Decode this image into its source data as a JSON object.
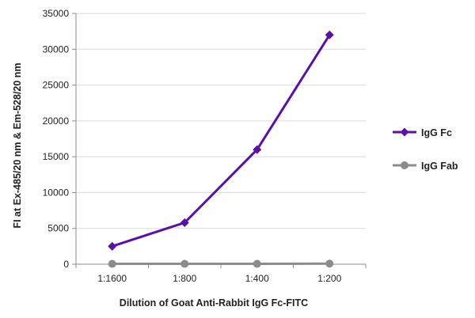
{
  "chart_data": {
    "type": "line",
    "categories": [
      "1:1600",
      "1:800",
      "1:400",
      "1:200"
    ],
    "series": [
      {
        "name": "IgG Fc",
        "values": [
          2500,
          5800,
          16000,
          32000
        ],
        "color": "#5a0fa6",
        "marker": "diamond"
      },
      {
        "name": "IgG Fab",
        "values": [
          50,
          50,
          50,
          80
        ],
        "color": "#8c8c8c",
        "marker": "circle"
      }
    ],
    "title": "",
    "xlabel": "Dilution of Goat Anti-Rabbit IgG Fc-FITC",
    "ylabel": "FI at Ex-485/20 nm & Em-528/20 nm",
    "ylim": [
      0,
      35000
    ],
    "yticks": [
      "0",
      "5000",
      "10000",
      "15000",
      "20000",
      "25000",
      "30000",
      "35000"
    ],
    "grid": true,
    "legend": "right"
  }
}
